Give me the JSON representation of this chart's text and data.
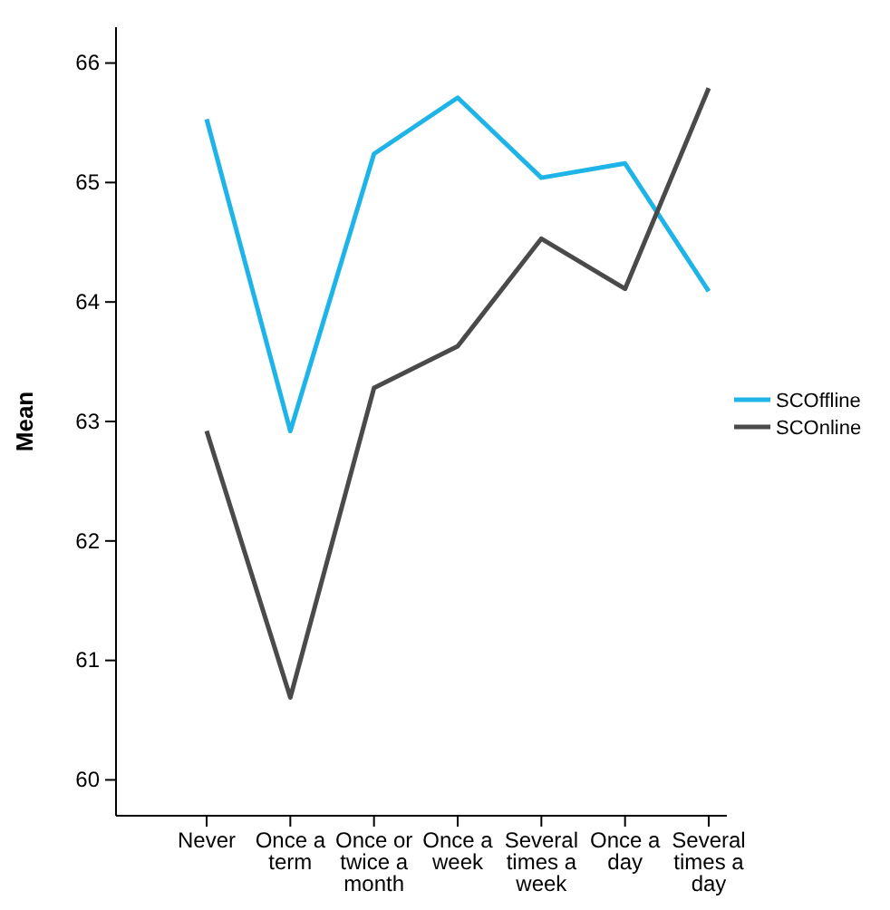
{
  "chart_data": {
    "type": "line",
    "ylabel": "Mean",
    "categories": [
      "Never",
      "Once a term",
      "Once or twice a month",
      "Once a week",
      "Several times a week",
      "Once a day",
      "Several times a day"
    ],
    "series": [
      {
        "name": "SCOffline",
        "color": "#1eb4e8",
        "values": [
          65.53,
          62.92,
          65.24,
          65.71,
          65.04,
          65.16,
          64.09
        ]
      },
      {
        "name": "SCOnline",
        "color": "#4a4a4a",
        "values": [
          62.92,
          60.69,
          63.28,
          63.63,
          64.53,
          64.11,
          65.79
        ]
      }
    ],
    "ylim": [
      59.7,
      66.3
    ],
    "yticks": [
      60,
      61,
      62,
      63,
      64,
      65,
      66
    ],
    "legend": "right",
    "grid": false,
    "marker": "none",
    "line_style": "solid"
  }
}
